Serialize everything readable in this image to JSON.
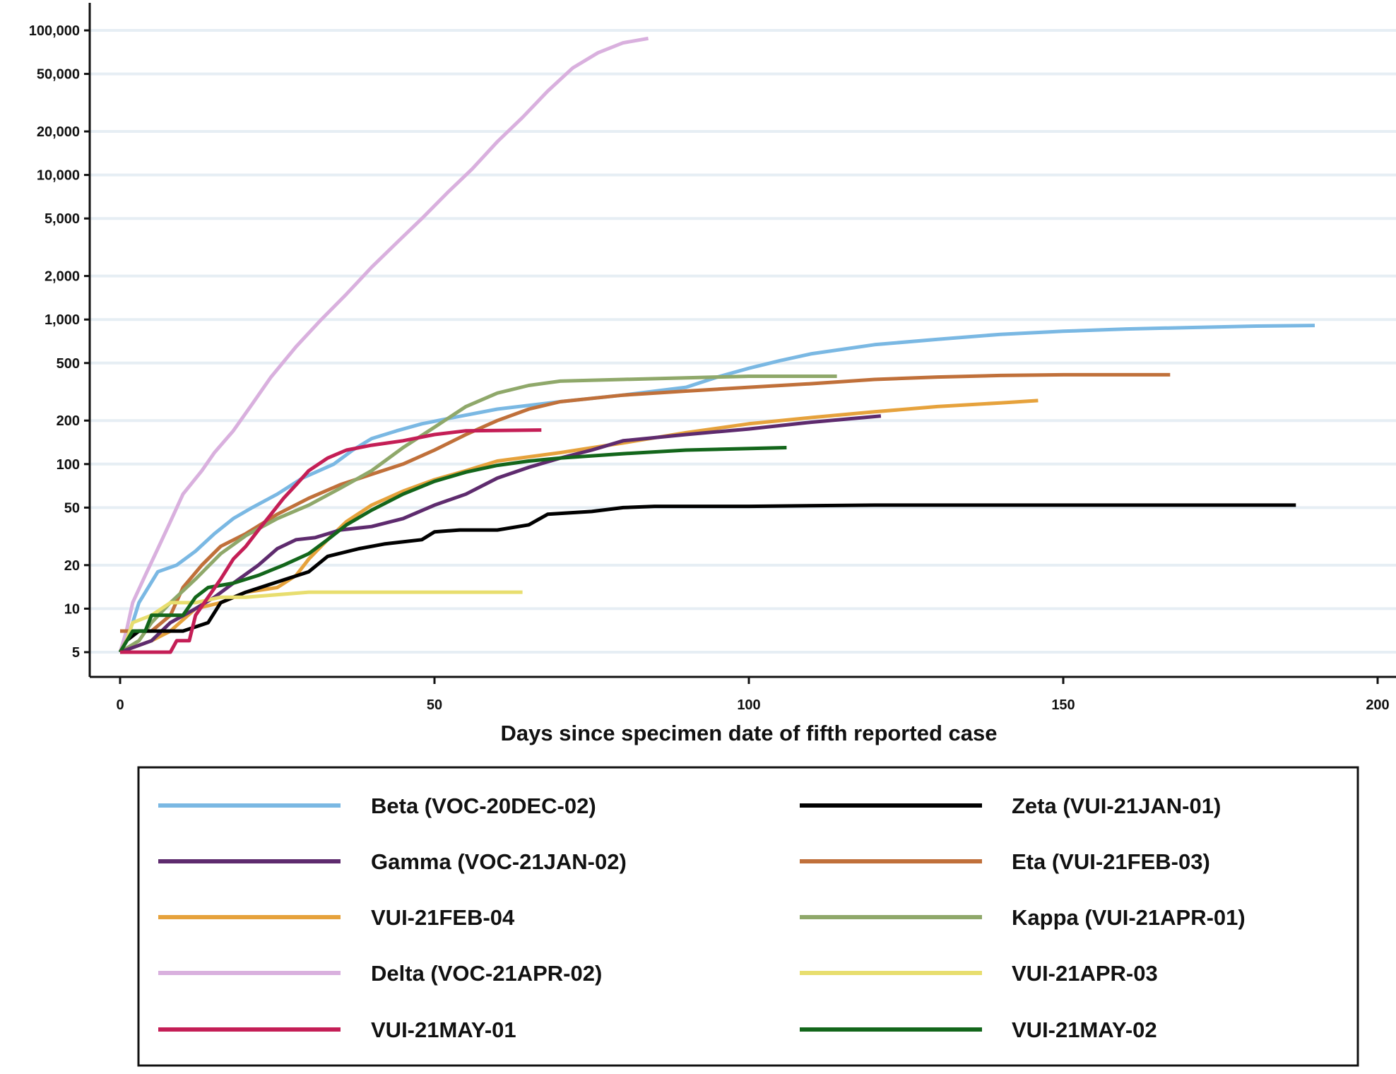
{
  "chart_data": {
    "type": "line",
    "title": "",
    "xlabel": "Days since specimen date of fifth reported case",
    "ylabel": "",
    "x_ticks": [
      "0",
      "50",
      "100",
      "150",
      "200"
    ],
    "x_tick_values": [
      0,
      50,
      100,
      150,
      200
    ],
    "y_scale": "log",
    "y_ticks": [
      "5",
      "10",
      "20",
      "50",
      "100",
      "200",
      "500",
      "1,000",
      "2,000",
      "5,000",
      "10,000",
      "20,000",
      "50,000",
      "100,000"
    ],
    "y_tick_values": [
      5,
      10,
      20,
      50,
      100,
      200,
      500,
      1000,
      2000,
      5000,
      10000,
      20000,
      50000,
      100000
    ],
    "xlim": [
      -5,
      202
    ],
    "ylim": [
      3.5,
      150000
    ],
    "grid": "horizontal",
    "legend_position": "bottom",
    "series": [
      {
        "name": "Beta (VOC-20DEC-02)",
        "color": "#7ab8e3",
        "points": [
          [
            0,
            5
          ],
          [
            1,
            6
          ],
          [
            2,
            8
          ],
          [
            3,
            11
          ],
          [
            6,
            18
          ],
          [
            9,
            20
          ],
          [
            12,
            25
          ],
          [
            15,
            33
          ],
          [
            18,
            42
          ],
          [
            21,
            50
          ],
          [
            25,
            62
          ],
          [
            29,
            80
          ],
          [
            34,
            100
          ],
          [
            37,
            125
          ],
          [
            40,
            150
          ],
          [
            44,
            170
          ],
          [
            48,
            190
          ],
          [
            53,
            210
          ],
          [
            60,
            240
          ],
          [
            70,
            270
          ],
          [
            80,
            300
          ],
          [
            90,
            340
          ],
          [
            95,
            400
          ],
          [
            100,
            460
          ],
          [
            105,
            520
          ],
          [
            110,
            580
          ],
          [
            120,
            670
          ],
          [
            130,
            730
          ],
          [
            140,
            790
          ],
          [
            150,
            830
          ],
          [
            160,
            860
          ],
          [
            170,
            880
          ],
          [
            180,
            900
          ],
          [
            190,
            910
          ]
        ]
      },
      {
        "name": "Zeta (VUI-21JAN-01)",
        "color": "#000000",
        "points": [
          [
            0,
            5
          ],
          [
            1,
            6
          ],
          [
            3,
            7
          ],
          [
            10,
            7
          ],
          [
            14,
            8
          ],
          [
            16,
            11
          ],
          [
            20,
            13
          ],
          [
            30,
            18
          ],
          [
            33,
            23
          ],
          [
            38,
            26
          ],
          [
            42,
            28
          ],
          [
            48,
            30
          ],
          [
            50,
            34
          ],
          [
            54,
            35
          ],
          [
            60,
            35
          ],
          [
            65,
            38
          ],
          [
            68,
            45
          ],
          [
            75,
            47
          ],
          [
            80,
            50
          ],
          [
            85,
            51
          ],
          [
            100,
            51
          ],
          [
            120,
            52
          ],
          [
            150,
            52
          ],
          [
            187,
            52
          ]
        ]
      },
      {
        "name": "Gamma (VOC-21JAN-02)",
        "color": "#5e2b6e",
        "points": [
          [
            0,
            5
          ],
          [
            5,
            6
          ],
          [
            8,
            8
          ],
          [
            12,
            10
          ],
          [
            15,
            12
          ],
          [
            18,
            15
          ],
          [
            22,
            20
          ],
          [
            25,
            26
          ],
          [
            28,
            30
          ],
          [
            31,
            31
          ],
          [
            35,
            35
          ],
          [
            40,
            37
          ],
          [
            45,
            42
          ],
          [
            50,
            52
          ],
          [
            55,
            62
          ],
          [
            60,
            80
          ],
          [
            65,
            95
          ],
          [
            70,
            110
          ],
          [
            75,
            125
          ],
          [
            80,
            145
          ],
          [
            90,
            160
          ],
          [
            100,
            175
          ],
          [
            110,
            195
          ],
          [
            121,
            215
          ]
        ]
      },
      {
        "name": "Eta (VUI-21FEB-03)",
        "color": "#c0703a",
        "points": [
          [
            0,
            7
          ],
          [
            5,
            7
          ],
          [
            8,
            9
          ],
          [
            10,
            14
          ],
          [
            13,
            20
          ],
          [
            16,
            27
          ],
          [
            20,
            33
          ],
          [
            25,
            45
          ],
          [
            30,
            58
          ],
          [
            35,
            72
          ],
          [
            40,
            85
          ],
          [
            45,
            100
          ],
          [
            50,
            125
          ],
          [
            55,
            160
          ],
          [
            60,
            200
          ],
          [
            65,
            240
          ],
          [
            70,
            270
          ],
          [
            80,
            300
          ],
          [
            90,
            320
          ],
          [
            100,
            340
          ],
          [
            110,
            360
          ],
          [
            120,
            385
          ],
          [
            130,
            400
          ],
          [
            140,
            410
          ],
          [
            150,
            415
          ],
          [
            167,
            415
          ]
        ]
      },
      {
        "name": "VUI-21FEB-04",
        "color": "#e6a23c",
        "points": [
          [
            0,
            5
          ],
          [
            5,
            6
          ],
          [
            8,
            7
          ],
          [
            12,
            10
          ],
          [
            16,
            11
          ],
          [
            20,
            13
          ],
          [
            25,
            14
          ],
          [
            28,
            17
          ],
          [
            30,
            22
          ],
          [
            33,
            30
          ],
          [
            36,
            40
          ],
          [
            40,
            52
          ],
          [
            45,
            65
          ],
          [
            50,
            78
          ],
          [
            55,
            90
          ],
          [
            60,
            105
          ],
          [
            70,
            120
          ],
          [
            80,
            140
          ],
          [
            90,
            165
          ],
          [
            100,
            190
          ],
          [
            110,
            210
          ],
          [
            120,
            230
          ],
          [
            130,
            250
          ],
          [
            140,
            265
          ],
          [
            146,
            275
          ]
        ]
      },
      {
        "name": "Kappa (VUI-21APR-01)",
        "color": "#8fa86a",
        "points": [
          [
            0,
            5
          ],
          [
            3,
            6
          ],
          [
            5,
            8
          ],
          [
            8,
            11
          ],
          [
            12,
            16
          ],
          [
            16,
            24
          ],
          [
            20,
            32
          ],
          [
            25,
            42
          ],
          [
            30,
            52
          ],
          [
            35,
            68
          ],
          [
            40,
            90
          ],
          [
            45,
            130
          ],
          [
            50,
            180
          ],
          [
            55,
            250
          ],
          [
            60,
            310
          ],
          [
            65,
            350
          ],
          [
            70,
            375
          ],
          [
            80,
            385
          ],
          [
            90,
            395
          ],
          [
            100,
            405
          ],
          [
            114,
            405
          ]
        ]
      },
      {
        "name": "Delta (VOC-21APR-02)",
        "color": "#d9b0de",
        "points": [
          [
            0,
            5
          ],
          [
            1,
            7
          ],
          [
            2,
            11
          ],
          [
            4,
            17
          ],
          [
            6,
            26
          ],
          [
            8,
            40
          ],
          [
            10,
            62
          ],
          [
            13,
            90
          ],
          [
            15,
            120
          ],
          [
            18,
            170
          ],
          [
            21,
            260
          ],
          [
            24,
            400
          ],
          [
            28,
            650
          ],
          [
            32,
            1000
          ],
          [
            36,
            1500
          ],
          [
            40,
            2300
          ],
          [
            44,
            3400
          ],
          [
            48,
            5000
          ],
          [
            52,
            7500
          ],
          [
            56,
            11000
          ],
          [
            60,
            17000
          ],
          [
            64,
            25000
          ],
          [
            68,
            38000
          ],
          [
            72,
            55000
          ],
          [
            76,
            70000
          ],
          [
            80,
            82000
          ],
          [
            84,
            88000
          ]
        ]
      },
      {
        "name": "VUI-21APR-03",
        "color": "#e8de6f",
        "points": [
          [
            0,
            5
          ],
          [
            1,
            6
          ],
          [
            2,
            8
          ],
          [
            5,
            9
          ],
          [
            8,
            11
          ],
          [
            12,
            11
          ],
          [
            16,
            12
          ],
          [
            20,
            12
          ],
          [
            30,
            13
          ],
          [
            40,
            13
          ],
          [
            50,
            13
          ],
          [
            64,
            13
          ]
        ]
      },
      {
        "name": "VUI-21MAY-01",
        "color": "#c41e56",
        "points": [
          [
            0,
            5
          ],
          [
            8,
            5
          ],
          [
            9,
            6
          ],
          [
            11,
            6
          ],
          [
            12,
            9
          ],
          [
            14,
            12
          ],
          [
            16,
            16
          ],
          [
            18,
            22
          ],
          [
            20,
            27
          ],
          [
            22,
            35
          ],
          [
            24,
            45
          ],
          [
            26,
            58
          ],
          [
            28,
            72
          ],
          [
            30,
            90
          ],
          [
            33,
            110
          ],
          [
            36,
            125
          ],
          [
            40,
            135
          ],
          [
            45,
            145
          ],
          [
            50,
            160
          ],
          [
            55,
            170
          ],
          [
            67,
            172
          ]
        ]
      },
      {
        "name": "VUI-21MAY-02",
        "color": "#13661b",
        "points": [
          [
            0,
            5
          ],
          [
            2,
            7
          ],
          [
            4,
            7
          ],
          [
            5,
            9
          ],
          [
            10,
            9
          ],
          [
            12,
            12
          ],
          [
            14,
            14
          ],
          [
            18,
            15
          ],
          [
            22,
            17
          ],
          [
            26,
            20
          ],
          [
            30,
            24
          ],
          [
            33,
            30
          ],
          [
            36,
            38
          ],
          [
            40,
            48
          ],
          [
            45,
            62
          ],
          [
            50,
            76
          ],
          [
            55,
            88
          ],
          [
            60,
            98
          ],
          [
            65,
            105
          ],
          [
            70,
            110
          ],
          [
            80,
            118
          ],
          [
            90,
            125
          ],
          [
            106,
            130
          ]
        ]
      }
    ]
  }
}
